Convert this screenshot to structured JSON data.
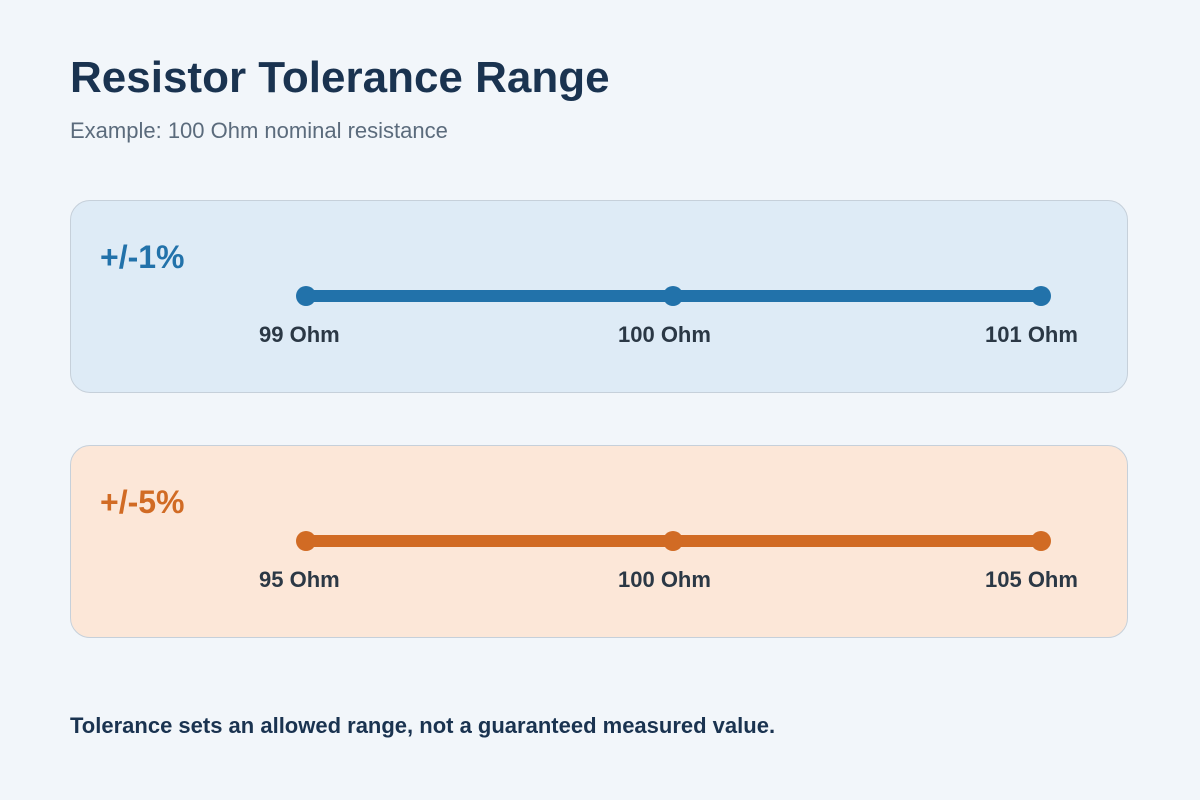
{
  "title": "Resistor Tolerance Range",
  "subtitle": "Example: 100 Ohm nominal resistance",
  "panels": [
    {
      "tolerance_label": "+/-1%",
      "accent_color": "#2272aa",
      "background_color": "#deebf6",
      "range": {
        "min": 99,
        "nominal": 100,
        "max": 101
      },
      "tick_labels": [
        "99 Ohm",
        "100 Ohm",
        "101 Ohm"
      ]
    },
    {
      "tolerance_label": "+/-5%",
      "accent_color": "#d16b24",
      "background_color": "#fce7d8",
      "range": {
        "min": 95,
        "nominal": 100,
        "max": 105
      },
      "tick_labels": [
        "95 Ohm",
        "100 Ohm",
        "105 Ohm"
      ]
    }
  ],
  "note": "Tolerance sets an allowed range, not a guaranteed measured value."
}
